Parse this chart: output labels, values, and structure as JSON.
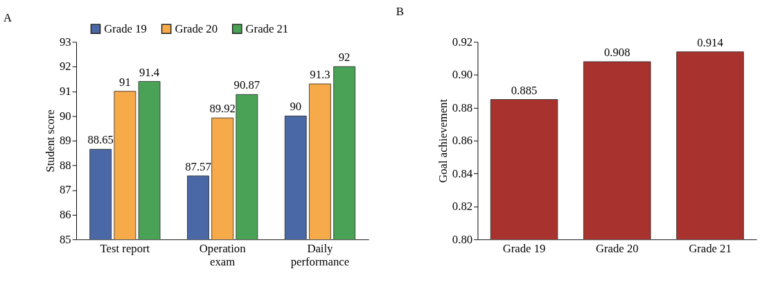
{
  "chart_data": [
    {
      "type": "bar",
      "title": "A",
      "ylabel": "Student score",
      "categories": [
        "Test report",
        "Operation\nexam",
        "Daily\nperformance"
      ],
      "series": [
        {
          "name": "Grade 19",
          "color": "#4a68a6",
          "values": [
            88.65,
            87.57,
            90
          ]
        },
        {
          "name": "Grade 20",
          "color": "#f7aa4a",
          "values": [
            91,
            89.92,
            91.3
          ]
        },
        {
          "name": "Grade 21",
          "color": "#4aa257",
          "values": [
            91.4,
            90.87,
            92
          ]
        }
      ],
      "ylim": [
        85,
        93
      ],
      "yticks": [
        85,
        86,
        87,
        88,
        89,
        90,
        91,
        92,
        93
      ],
      "data_labels": true,
      "legend": "top",
      "grid": false
    },
    {
      "type": "bar",
      "title": "B",
      "ylabel": "Goal achievement",
      "categories": [
        "Grade 19",
        "Grade 20",
        "Grade 21"
      ],
      "series": [
        {
          "color": "#a8322d",
          "values": [
            0.885,
            0.908,
            0.914
          ]
        }
      ],
      "ylim": [
        0.8,
        0.92
      ],
      "yticks": [
        {
          "value": 0.8,
          "label": "0.80"
        },
        {
          "value": 0.82,
          "label": "0.82"
        },
        {
          "value": 0.84,
          "label": "0.84"
        },
        {
          "value": 0.86,
          "label": "0.86"
        },
        {
          "value": 0.88,
          "label": "0.88"
        },
        {
          "value": 0.9,
          "label": "0.90"
        },
        {
          "value": 0.92,
          "label": "0.92"
        }
      ],
      "data_labels": true,
      "legend": false,
      "grid": false
    }
  ]
}
